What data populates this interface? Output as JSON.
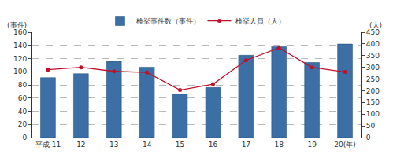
{
  "chart_data": {
    "type": "bar",
    "categories": [
      "平成 11",
      "12",
      "13",
      "14",
      "15",
      "16",
      "17",
      "18",
      "19",
      "20(年)"
    ],
    "series": [
      {
        "name": "検挙事件数（事件）",
        "type": "bar",
        "color": "#3b6fa6",
        "values": [
          91,
          97,
          116,
          107,
          66,
          76,
          125,
          138,
          114,
          142
        ]
      },
      {
        "name": "検挙人員（人）",
        "type": "line",
        "axis": "y2",
        "color": "#c0102a",
        "marker": "circle",
        "values": [
          290,
          300,
          283,
          278,
          203,
          228,
          330,
          383,
          300,
          280
        ]
      }
    ],
    "y_label": "(事件)",
    "y2_label": "(人)",
    "ylim": [
      0,
      160
    ],
    "yticks": [
      0,
      20,
      40,
      60,
      80,
      100,
      120,
      140,
      160
    ],
    "y2lim": [
      0,
      450
    ],
    "y2ticks": [
      0,
      50,
      100,
      150,
      200,
      250,
      300,
      350,
      400,
      450
    ],
    "grid": true,
    "legend": "top"
  }
}
